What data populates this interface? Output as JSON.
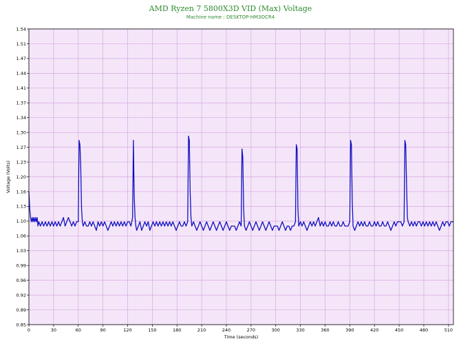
{
  "chart_data": {
    "type": "line",
    "title": "AMD Ryzen 7 5800X3D VID (Max) Voltage",
    "subtitle": "Machine name : DESKTOP-HM3OCR4",
    "xlabel": "Time (seconds)",
    "ylabel": "Voltage (Volts)",
    "xlim": [
      0,
      516
    ],
    "ylim": [
      0.85,
      1.54
    ],
    "x_ticks": [
      "0",
      "30",
      "60",
      "90",
      "120",
      "150",
      "180",
      "210",
      "240",
      "270",
      "300",
      "330",
      "360",
      "390",
      "420",
      "450",
      "480",
      "510"
    ],
    "y_ticks": [
      "0.85",
      "0.89",
      "0.92",
      "0.96",
      "0.99",
      "1.03",
      "1.06",
      "1.10",
      "1.13",
      "1.16",
      "1.20",
      "1.23",
      "1.27",
      "1.30",
      "1.34",
      "1.37",
      "1.41",
      "1.44",
      "1.47",
      "1.51",
      "1.54"
    ],
    "grid": true,
    "background": "#f4e6f8",
    "grid_color": "#d8a6e6",
    "series": [
      {
        "color": "#1010c0",
        "points": [
          [
            0,
            1.16
          ],
          [
            1,
            1.12
          ],
          [
            2,
            1.1
          ],
          [
            3,
            1.09
          ],
          [
            4,
            1.1
          ],
          [
            5,
            1.09
          ],
          [
            6,
            1.1
          ],
          [
            7,
            1.09
          ],
          [
            8,
            1.1
          ],
          [
            9,
            1.09
          ],
          [
            10,
            1.1
          ],
          [
            11,
            1.08
          ],
          [
            12,
            1.09
          ],
          [
            14,
            1.08
          ],
          [
            16,
            1.09
          ],
          [
            18,
            1.08
          ],
          [
            20,
            1.09
          ],
          [
            22,
            1.08
          ],
          [
            24,
            1.09
          ],
          [
            26,
            1.08
          ],
          [
            28,
            1.09
          ],
          [
            30,
            1.08
          ],
          [
            32,
            1.09
          ],
          [
            34,
            1.08
          ],
          [
            36,
            1.09
          ],
          [
            38,
            1.08
          ],
          [
            40,
            1.09
          ],
          [
            42,
            1.1
          ],
          [
            44,
            1.08
          ],
          [
            46,
            1.09
          ],
          [
            48,
            1.1
          ],
          [
            50,
            1.09
          ],
          [
            52,
            1.08
          ],
          [
            54,
            1.09
          ],
          [
            56,
            1.08
          ],
          [
            58,
            1.09
          ],
          [
            60,
            1.09
          ],
          [
            61,
            1.28
          ],
          [
            62,
            1.27
          ],
          [
            63,
            1.22
          ],
          [
            64,
            1.12
          ],
          [
            65,
            1.09
          ],
          [
            66,
            1.08
          ],
          [
            68,
            1.09
          ],
          [
            70,
            1.08
          ],
          [
            72,
            1.08
          ],
          [
            74,
            1.09
          ],
          [
            76,
            1.08
          ],
          [
            78,
            1.09
          ],
          [
            80,
            1.08
          ],
          [
            82,
            1.07
          ],
          [
            84,
            1.09
          ],
          [
            86,
            1.08
          ],
          [
            88,
            1.09
          ],
          [
            90,
            1.08
          ],
          [
            92,
            1.09
          ],
          [
            94,
            1.08
          ],
          [
            96,
            1.07
          ],
          [
            98,
            1.08
          ],
          [
            100,
            1.09
          ],
          [
            102,
            1.08
          ],
          [
            104,
            1.09
          ],
          [
            106,
            1.08
          ],
          [
            108,
            1.09
          ],
          [
            110,
            1.08
          ],
          [
            112,
            1.09
          ],
          [
            114,
            1.08
          ],
          [
            116,
            1.09
          ],
          [
            118,
            1.08
          ],
          [
            120,
            1.09
          ],
          [
            122,
            1.09
          ],
          [
            124,
            1.08
          ],
          [
            126,
            1.1
          ],
          [
            127,
            1.28
          ],
          [
            128,
            1.15
          ],
          [
            129,
            1.1
          ],
          [
            130,
            1.08
          ],
          [
            131,
            1.07
          ],
          [
            133,
            1.08
          ],
          [
            135,
            1.09
          ],
          [
            137,
            1.07
          ],
          [
            139,
            1.08
          ],
          [
            141,
            1.09
          ],
          [
            143,
            1.08
          ],
          [
            145,
            1.09
          ],
          [
            147,
            1.07
          ],
          [
            149,
            1.08
          ],
          [
            151,
            1.09
          ],
          [
            153,
            1.08
          ],
          [
            155,
            1.09
          ],
          [
            157,
            1.08
          ],
          [
            159,
            1.09
          ],
          [
            161,
            1.08
          ],
          [
            163,
            1.09
          ],
          [
            165,
            1.08
          ],
          [
            167,
            1.09
          ],
          [
            169,
            1.08
          ],
          [
            171,
            1.09
          ],
          [
            173,
            1.08
          ],
          [
            175,
            1.09
          ],
          [
            177,
            1.08
          ],
          [
            179,
            1.07
          ],
          [
            181,
            1.08
          ],
          [
            183,
            1.09
          ],
          [
            185,
            1.08
          ],
          [
            187,
            1.08
          ],
          [
            189,
            1.09
          ],
          [
            191,
            1.08
          ],
          [
            193,
            1.09
          ],
          [
            194,
            1.29
          ],
          [
            195,
            1.28
          ],
          [
            196,
            1.16
          ],
          [
            197,
            1.1
          ],
          [
            198,
            1.08
          ],
          [
            200,
            1.09
          ],
          [
            202,
            1.08
          ],
          [
            204,
            1.07
          ],
          [
            206,
            1.08
          ],
          [
            208,
            1.09
          ],
          [
            210,
            1.08
          ],
          [
            212,
            1.07
          ],
          [
            214,
            1.08
          ],
          [
            216,
            1.09
          ],
          [
            218,
            1.08
          ],
          [
            220,
            1.07
          ],
          [
            222,
            1.08
          ],
          [
            224,
            1.09
          ],
          [
            226,
            1.08
          ],
          [
            228,
            1.07
          ],
          [
            230,
            1.08
          ],
          [
            232,
            1.09
          ],
          [
            234,
            1.08
          ],
          [
            236,
            1.07
          ],
          [
            238,
            1.08
          ],
          [
            240,
            1.09
          ],
          [
            242,
            1.08
          ],
          [
            244,
            1.07
          ],
          [
            246,
            1.08
          ],
          [
            248,
            1.08
          ],
          [
            250,
            1.08
          ],
          [
            252,
            1.07
          ],
          [
            254,
            1.08
          ],
          [
            256,
            1.09
          ],
          [
            258,
            1.08
          ],
          [
            259,
            1.26
          ],
          [
            260,
            1.24
          ],
          [
            261,
            1.12
          ],
          [
            262,
            1.08
          ],
          [
            264,
            1.07
          ],
          [
            266,
            1.08
          ],
          [
            268,
            1.09
          ],
          [
            270,
            1.08
          ],
          [
            272,
            1.07
          ],
          [
            274,
            1.08
          ],
          [
            276,
            1.09
          ],
          [
            278,
            1.08
          ],
          [
            280,
            1.07
          ],
          [
            282,
            1.08
          ],
          [
            284,
            1.09
          ],
          [
            286,
            1.08
          ],
          [
            288,
            1.07
          ],
          [
            290,
            1.08
          ],
          [
            292,
            1.09
          ],
          [
            294,
            1.08
          ],
          [
            296,
            1.07
          ],
          [
            298,
            1.08
          ],
          [
            300,
            1.08
          ],
          [
            302,
            1.08
          ],
          [
            304,
            1.07
          ],
          [
            306,
            1.08
          ],
          [
            308,
            1.09
          ],
          [
            310,
            1.08
          ],
          [
            312,
            1.07
          ],
          [
            314,
            1.08
          ],
          [
            316,
            1.08
          ],
          [
            318,
            1.07
          ],
          [
            320,
            1.08
          ],
          [
            322,
            1.08
          ],
          [
            324,
            1.09
          ],
          [
            325,
            1.27
          ],
          [
            326,
            1.26
          ],
          [
            327,
            1.12
          ],
          [
            328,
            1.08
          ],
          [
            330,
            1.09
          ],
          [
            332,
            1.08
          ],
          [
            334,
            1.09
          ],
          [
            336,
            1.08
          ],
          [
            338,
            1.07
          ],
          [
            340,
            1.08
          ],
          [
            342,
            1.09
          ],
          [
            344,
            1.08
          ],
          [
            346,
            1.09
          ],
          [
            348,
            1.08
          ],
          [
            350,
            1.09
          ],
          [
            352,
            1.1
          ],
          [
            354,
            1.08
          ],
          [
            356,
            1.09
          ],
          [
            358,
            1.08
          ],
          [
            360,
            1.09
          ],
          [
            362,
            1.08
          ],
          [
            364,
            1.08
          ],
          [
            366,
            1.09
          ],
          [
            368,
            1.08
          ],
          [
            370,
            1.09
          ],
          [
            372,
            1.08
          ],
          [
            374,
            1.08
          ],
          [
            376,
            1.09
          ],
          [
            378,
            1.08
          ],
          [
            380,
            1.08
          ],
          [
            382,
            1.09
          ],
          [
            384,
            1.08
          ],
          [
            386,
            1.08
          ],
          [
            388,
            1.08
          ],
          [
            390,
            1.09
          ],
          [
            391,
            1.28
          ],
          [
            392,
            1.27
          ],
          [
            393,
            1.14
          ],
          [
            394,
            1.08
          ],
          [
            396,
            1.07
          ],
          [
            398,
            1.08
          ],
          [
            400,
            1.09
          ],
          [
            402,
            1.08
          ],
          [
            404,
            1.09
          ],
          [
            406,
            1.08
          ],
          [
            408,
            1.09
          ],
          [
            410,
            1.08
          ],
          [
            412,
            1.08
          ],
          [
            414,
            1.09
          ],
          [
            416,
            1.08
          ],
          [
            418,
            1.08
          ],
          [
            420,
            1.09
          ],
          [
            422,
            1.08
          ],
          [
            424,
            1.09
          ],
          [
            426,
            1.08
          ],
          [
            428,
            1.08
          ],
          [
            430,
            1.09
          ],
          [
            432,
            1.08
          ],
          [
            434,
            1.08
          ],
          [
            436,
            1.09
          ],
          [
            438,
            1.08
          ],
          [
            440,
            1.07
          ],
          [
            442,
            1.08
          ],
          [
            444,
            1.09
          ],
          [
            446,
            1.08
          ],
          [
            448,
            1.09
          ],
          [
            450,
            1.09
          ],
          [
            452,
            1.09
          ],
          [
            454,
            1.08
          ],
          [
            456,
            1.09
          ],
          [
            457,
            1.28
          ],
          [
            458,
            1.27
          ],
          [
            459,
            1.18
          ],
          [
            460,
            1.1
          ],
          [
            461,
            1.09
          ],
          [
            463,
            1.08
          ],
          [
            465,
            1.09
          ],
          [
            467,
            1.08
          ],
          [
            469,
            1.09
          ],
          [
            471,
            1.08
          ],
          [
            473,
            1.09
          ],
          [
            475,
            1.09
          ],
          [
            477,
            1.08
          ],
          [
            479,
            1.09
          ],
          [
            481,
            1.08
          ],
          [
            483,
            1.09
          ],
          [
            485,
            1.08
          ],
          [
            487,
            1.09
          ],
          [
            489,
            1.08
          ],
          [
            491,
            1.09
          ],
          [
            493,
            1.08
          ],
          [
            495,
            1.09
          ],
          [
            497,
            1.08
          ],
          [
            499,
            1.07
          ],
          [
            501,
            1.08
          ],
          [
            503,
            1.09
          ],
          [
            505,
            1.08
          ],
          [
            507,
            1.09
          ],
          [
            509,
            1.09
          ],
          [
            511,
            1.08
          ],
          [
            513,
            1.09
          ],
          [
            516,
            1.09
          ]
        ]
      }
    ]
  }
}
